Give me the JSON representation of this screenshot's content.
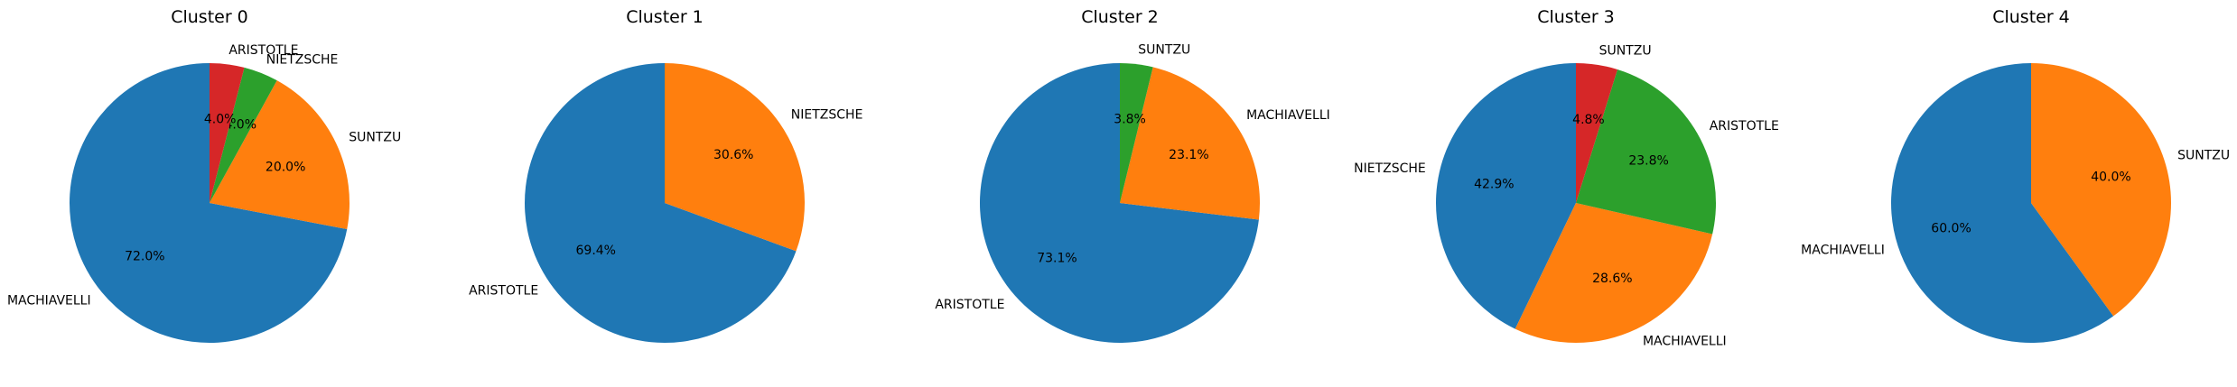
{
  "chart_data": [
    {
      "type": "pie",
      "title": "Cluster 0",
      "slices": [
        {
          "label": "MACHIAVELLI",
          "value": 72.0,
          "pct_text": "72.0%",
          "color": "#1f77b4"
        },
        {
          "label": "SUNTZU",
          "value": 20.0,
          "pct_text": "20.0%",
          "color": "#ff7f0e"
        },
        {
          "label": "NIETZSCHE",
          "value": 4.0,
          "pct_text": "4.0%",
          "color": "#2ca02c"
        },
        {
          "label": "ARISTOTLE",
          "value": 4.0,
          "pct_text": "4.0%",
          "color": "#d62728"
        }
      ]
    },
    {
      "type": "pie",
      "title": "Cluster 1",
      "slices": [
        {
          "label": "ARISTOTLE",
          "value": 69.4,
          "pct_text": "69.4%",
          "color": "#1f77b4"
        },
        {
          "label": "NIETZSCHE",
          "value": 30.6,
          "pct_text": "30.6%",
          "color": "#ff7f0e"
        }
      ]
    },
    {
      "type": "pie",
      "title": "Cluster 2",
      "slices": [
        {
          "label": "ARISTOTLE",
          "value": 73.1,
          "pct_text": "73.1%",
          "color": "#1f77b4"
        },
        {
          "label": "MACHIAVELLI",
          "value": 23.1,
          "pct_text": "23.1%",
          "color": "#ff7f0e"
        },
        {
          "label": "SUNTZU",
          "value": 3.8,
          "pct_text": "3.8%",
          "color": "#2ca02c"
        }
      ]
    },
    {
      "type": "pie",
      "title": "Cluster 3",
      "slices": [
        {
          "label": "NIETZSCHE",
          "value": 42.9,
          "pct_text": "42.9%",
          "color": "#1f77b4"
        },
        {
          "label": "MACHIAVELLI",
          "value": 28.6,
          "pct_text": "28.6%",
          "color": "#ff7f0e"
        },
        {
          "label": "ARISTOTLE",
          "value": 23.8,
          "pct_text": "23.8%",
          "color": "#2ca02c"
        },
        {
          "label": "SUNTZU",
          "value": 4.8,
          "pct_text": "4.8%",
          "color": "#d62728"
        }
      ]
    },
    {
      "type": "pie",
      "title": "Cluster 4",
      "slices": [
        {
          "label": "MACHIAVELLI",
          "value": 60.0,
          "pct_text": "60.0%",
          "color": "#1f77b4"
        },
        {
          "label": "SUNTZU",
          "value": 40.0,
          "pct_text": "40.0%",
          "color": "#ff7f0e"
        }
      ]
    }
  ]
}
